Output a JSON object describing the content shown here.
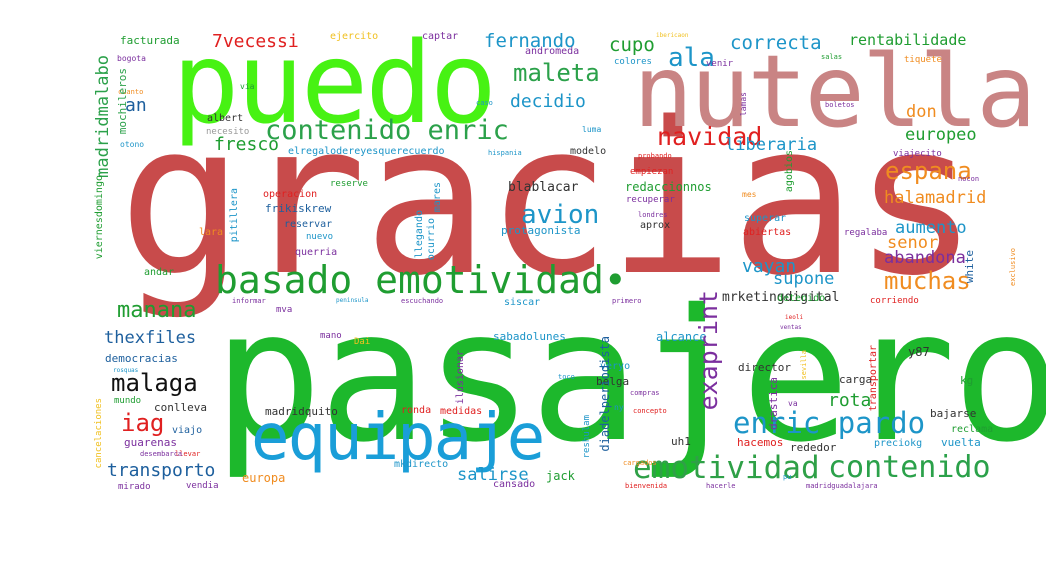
{
  "wordcloud": {
    "words": {
      "gracias": {
        "text": "gracias",
        "color": "#c84b4b"
      },
      "pasajero": {
        "text": "pasajero",
        "color": "#1db82c"
      },
      "puedo": {
        "text": "puedo",
        "color": "#47f213"
      },
      "nutella": {
        "text": "nutella",
        "color": "#c98484"
      },
      "equipaje": {
        "text": "equipaje",
        "color": "#1a9ed8"
      },
      "basado": {
        "text": "basado emotividad•",
        "color": "#1f9d31"
      },
      "emotividad": {
        "text": "emotividad",
        "color": "#2fa047"
      },
      "contenido_enric": {
        "text": "contenido enric",
        "color": "#2ba14a"
      },
      "enric_pardo": {
        "text": "enric pardo",
        "color": "#1d95c8"
      },
      "contenido": {
        "text": "contenido",
        "color": "#2ba14a"
      },
      "maleta": {
        "text": "maleta",
        "color": "#2ba14a"
      },
      "avion": {
        "text": "avion",
        "color": "#1d95c8"
      },
      "navidad": {
        "text": "navidad",
        "color": "#e02020"
      },
      "ala": {
        "text": "ala",
        "color": "#1d95c8"
      },
      "malaga": {
        "text": "malaga",
        "color": "#111111"
      },
      "espana": {
        "text": "espana",
        "color": "#f08c20"
      },
      "muchas": {
        "text": "muchas",
        "color": "#f08c20"
      },
      "manana": {
        "text": "manana",
        "color": "#1f9d31"
      },
      "iag": {
        "text": "iag",
        "color": "#e02020"
      },
      "correcta": {
        "text": "correcta",
        "color": "#1d95c8"
      },
      "fernando": {
        "text": "fernando",
        "color": "#1d95c8"
      },
      "decidio": {
        "text": "decidio",
        "color": "#1d95c8"
      },
      "fresco": {
        "text": "fresco",
        "color": "#1f9d31"
      },
      "thexfiles": {
        "text": "thexfiles",
        "color": "#1d5f9d"
      },
      "transporto": {
        "text": "transporto",
        "color": "#1d5f9d"
      },
      "salirse": {
        "text": "salirse",
        "color": "#1d95c8"
      },
      "cupo": {
        "text": "cupo",
        "color": "#1f9d31"
      },
      "7vecessi": {
        "text": "7vecessi",
        "color": "#e02020"
      },
      "an": {
        "text": "an",
        "color": "#1d5f9d"
      },
      "liberaria": {
        "text": "liberaria",
        "color": "#1d95c8"
      },
      "europeo": {
        "text": "europeo",
        "color": "#1f9d31"
      },
      "halamadrid": {
        "text": "halamadrid",
        "color": "#f08c20"
      },
      "aumento": {
        "text": "aumento",
        "color": "#1d95c8"
      },
      "senor": {
        "text": "senor",
        "color": "#f08c20"
      },
      "abandona": {
        "text": "abandona",
        "color": "#7b2f9e"
      },
      "supone": {
        "text": "supone",
        "color": "#1d95c8"
      },
      "vayan": {
        "text": "vayan",
        "color": "#1d95c8"
      },
      "rota": {
        "text": "rota",
        "color": "#1f9d31"
      },
      "don": {
        "text": "don",
        "color": "#f08c20"
      },
      "rentabilidade": {
        "text": "rentabilidade",
        "color": "#1f9d31"
      },
      "mrketing": {
        "text": "mrketingdigital",
        "color": "#333333"
      },
      "blablacar": {
        "text": "blablacar",
        "color": "#333333"
      },
      "redacc": {
        "text": "redaccionnos",
        "color": "#1f9d31"
      },
      "alcance": {
        "text": "alcance",
        "color": "#1d95c8"
      },
      "sabado": {
        "text": "sabadolunes",
        "color": "#1d95c8"
      },
      "director": {
        "text": "director",
        "color": "#333333"
      },
      "carga": {
        "text": "carga",
        "color": "#333333"
      },
      "y87": {
        "text": "y87",
        "color": "#333333"
      },
      "kg": {
        "text": "kg",
        "color": "#1f9d31"
      },
      "bajarse": {
        "text": "bajarse",
        "color": "#333333"
      },
      "reclama": {
        "text": "reclama",
        "color": "#1f9d31"
      },
      "vuelta": {
        "text": "vuelta",
        "color": "#1d95c8"
      },
      "rededor": {
        "text": "rededor",
        "color": "#333333"
      },
      "preciokg": {
        "text": "preciokg",
        "color": "#1d95c8"
      },
      "hacemos": {
        "text": "hacemos",
        "color": "#e02020"
      },
      "uh1": {
        "text": "uh1",
        "color": "#333333"
      },
      "jack": {
        "text": "jack",
        "color": "#1f9d31"
      },
      "europa": {
        "text": "europa",
        "color": "#f08c20"
      },
      "madridquito": {
        "text": "madridquito",
        "color": "#333333"
      },
      "democracias": {
        "text": "democracias",
        "color": "#1d5f9d"
      },
      "conlleva": {
        "text": "conlleva",
        "color": "#333333"
      },
      "guarenas": {
        "text": "guarenas",
        "color": "#7b2f9e"
      },
      "viajo": {
        "text": "viajo",
        "color": "#1d5f9d"
      },
      "mundo": {
        "text": "mundo",
        "color": "#1f9d31"
      },
      "frikiskrew": {
        "text": "frikiskrew",
        "color": "#1d5f9d"
      },
      "operacion": {
        "text": "operacion",
        "color": "#e02020"
      },
      "reservar": {
        "text": "reservar",
        "color": "#1d5f9d"
      },
      "reserve": {
        "text": "reserve",
        "color": "#1f9d31"
      },
      "nuevo": {
        "text": "nuevo",
        "color": "#1d95c8"
      },
      "querria": {
        "text": "querria",
        "color": "#7b2f9e"
      },
      "lara": {
        "text": "lara",
        "color": "#f08c20"
      },
      "protagonista": {
        "text": "protagonista",
        "color": "#1d95c8"
      },
      "aprox": {
        "text": "aprox",
        "color": "#333333"
      },
      "abiertas": {
        "text": "abiertas",
        "color": "#e02020"
      },
      "superar": {
        "text": "superar",
        "color": "#1d95c8"
      },
      "regalaba": {
        "text": "regalaba",
        "color": "#7b2f9e"
      },
      "recuperar": {
        "text": "recuperar",
        "color": "#7b2f9e"
      },
      "empiezan": {
        "text": "empiezan",
        "color": "#e02020"
      },
      "modelo": {
        "text": "modelo",
        "color": "#333333"
      },
      "elregalo": {
        "text": "elregalodereyesquerecuerdo",
        "color": "#1d95c8"
      },
      "albert": {
        "text": "albert",
        "color": "#333333"
      },
      "necesito": {
        "text": "necesito",
        "color": "#999999"
      },
      "facturada": {
        "text": "facturada",
        "color": "#1f9d31"
      },
      "captar": {
        "text": "captar",
        "color": "#7b2f9e"
      },
      "ejercito": {
        "text": "ejercito",
        "color": "#f0c020"
      },
      "andromeda": {
        "text": "andromeda",
        "color": "#7b2f9e"
      },
      "colores": {
        "text": "colores",
        "color": "#1d95c8"
      },
      "venir": {
        "text": "venir",
        "color": "#7b2f9e"
      },
      "tiquete": {
        "text": "tiquete",
        "color": "#f08c20"
      },
      "viajecito": {
        "text": "viajecito",
        "color": "#7b2f9e"
      },
      "detenido": {
        "text": "detenido",
        "color": "#1f9d31"
      },
      "siscar": {
        "text": "siscar",
        "color": "#1d95c8"
      },
      "andar": {
        "text": "andar",
        "color": "#1f9d31"
      },
      "mva": {
        "text": "mva",
        "color": "#7b2f9e"
      },
      "mano": {
        "text": "mano",
        "color": "#7b2f9e"
      },
      "dai": {
        "text": "Dai",
        "color": "#f0c020"
      },
      "verano": {
        "text": "veryo",
        "color": "#1d95c8"
      },
      "belga": {
        "text": "belga",
        "color": "#333333"
      },
      "ronda": {
        "text": "ronda",
        "color": "#e02020"
      },
      "medidas": {
        "text": "medidas",
        "color": "#e02020"
      },
      "mkdirecto": {
        "text": "mkdirecto",
        "color": "#1d95c8"
      },
      "cansado": {
        "text": "cansado",
        "color": "#7b2f9e"
      },
      "vendia": {
        "text": "vendia",
        "color": "#7b2f9e"
      },
      "mirado": {
        "text": "mirado",
        "color": "#7b2f9e"
      },
      "corriendo": {
        "text": "corriendo",
        "color": "#e02020"
      },
      "bogota": {
        "text": "bogota",
        "color": "#7b2f9e"
      },
      "via": {
        "text": "via",
        "color": "#1f9d31"
      },
      "caso": {
        "text": "caso",
        "color": "#1d95c8"
      },
      "hispania": {
        "text": "hispania",
        "color": "#1d95c8"
      },
      "mes": {
        "text": "mes",
        "color": "#f08c20"
      },
      "londres": {
        "text": "londres",
        "color": "#7b2f9e"
      },
      "probando": {
        "text": "probando",
        "color": "#e02020"
      },
      "boletos": {
        "text": "boletos",
        "color": "#7b2f9e"
      },
      "cuanto": {
        "text": "cuanto",
        "color": "#f08c20"
      },
      "otono": {
        "text": "otono",
        "color": "#1d95c8"
      },
      "luma": {
        "text": "luma",
        "color": "#1d95c8"
      },
      "informar": {
        "text": "informar",
        "color": "#7b2f9e"
      },
      "peninsula": {
        "text": "peninsula",
        "color": "#1d95c8"
      },
      "escuchando": {
        "text": "escuchando",
        "color": "#7b2f9e"
      },
      "primero": {
        "text": "primero",
        "color": "#7b2f9e"
      },
      "toco": {
        "text": "toco",
        "color": "#1d95c8"
      },
      "compras": {
        "text": "compras",
        "color": "#7b2f9e"
      },
      "concepto": {
        "text": "concepto",
        "color": "#e02020"
      },
      "ny": {
        "text": "ny",
        "color": "#1d95c8"
      },
      "llevar": {
        "text": "llevar",
        "color": "#e02020"
      },
      "desemb": {
        "text": "desembarca",
        "color": "#7b2f9e"
      },
      "va": {
        "text": "va",
        "color": "#7b2f9e"
      },
      "bienvenida": {
        "text": "bienvenida",
        "color": "#e02020"
      },
      "hacerle": {
        "text": "hacerle",
        "color": "#7b2f9e"
      },
      "madridguadalajara": {
        "text": "madridguadalajara",
        "color": "#7b2f9e"
      },
      "pu": {
        "text": "pu",
        "color": "#1d95c8"
      },
      "cargados": {
        "text": "cargados",
        "color": "#f08c20"
      },
      "rosquas": {
        "text": "rosquas",
        "color": "#1d95c8"
      },
      "salas": {
        "text": "salas",
        "color": "#1f9d31"
      },
      "nocon": {
        "text": "nocon",
        "color": "#7b2f9e"
      },
      "iberica": {
        "text": "ibericaon",
        "color": "#f0c020"
      },
      "ies": {
        "text": "ieoli",
        "color": "#e02020"
      },
      "rentas": {
        "text": "ventas",
        "color": "#7b2f9e"
      },
      "madridmalabo": {
        "text": "madridmalabo",
        "color": "#2ba14a"
      },
      "mochileros": {
        "text": "mochileros",
        "color": "#2ba14a"
      },
      "exaprint": {
        "text": "exaprint",
        "color": "#7b2f9e"
      },
      "diadel": {
        "text": "diadelperiodista",
        "color": "#1d5f9d"
      },
      "viernesdomingo": {
        "text": "viernesdomingo",
        "color": "#1f9d31"
      },
      "pitillera": {
        "text": "pitillera",
        "color": "#1d95c8"
      },
      "llegando": {
        "text": "llegando",
        "color": "#1d95c8"
      },
      "ocurrio": {
        "text": "ocurrio",
        "color": "#1d95c8"
      },
      "mares": {
        "text": "mares",
        "color": "#1d95c8"
      },
      "white": {
        "text": "white",
        "color": "#1d5f9d"
      },
      "drastica": {
        "text": "drastica",
        "color": "#7b2f9e"
      },
      "transportar": {
        "text": "transportar",
        "color": "#e02020"
      },
      "agobios": {
        "text": "agobios",
        "color": "#1f9d31"
      },
      "ilusionar": {
        "text": "ilusionar",
        "color": "#7b2f9e"
      },
      "cancelaciones": {
        "text": "cancelaciones",
        "color": "#f0c020"
      },
      "reshulam": {
        "text": "reshulam",
        "color": "#1d95c8"
      },
      "lamas": {
        "text": "lamas",
        "color": "#7b2f9e"
      },
      "exclusivo": {
        "text": "exclusivo",
        "color": "#f08c20"
      },
      "sevilla": {
        "text": "sevilla",
        "color": "#f0c020"
      }
    }
  }
}
